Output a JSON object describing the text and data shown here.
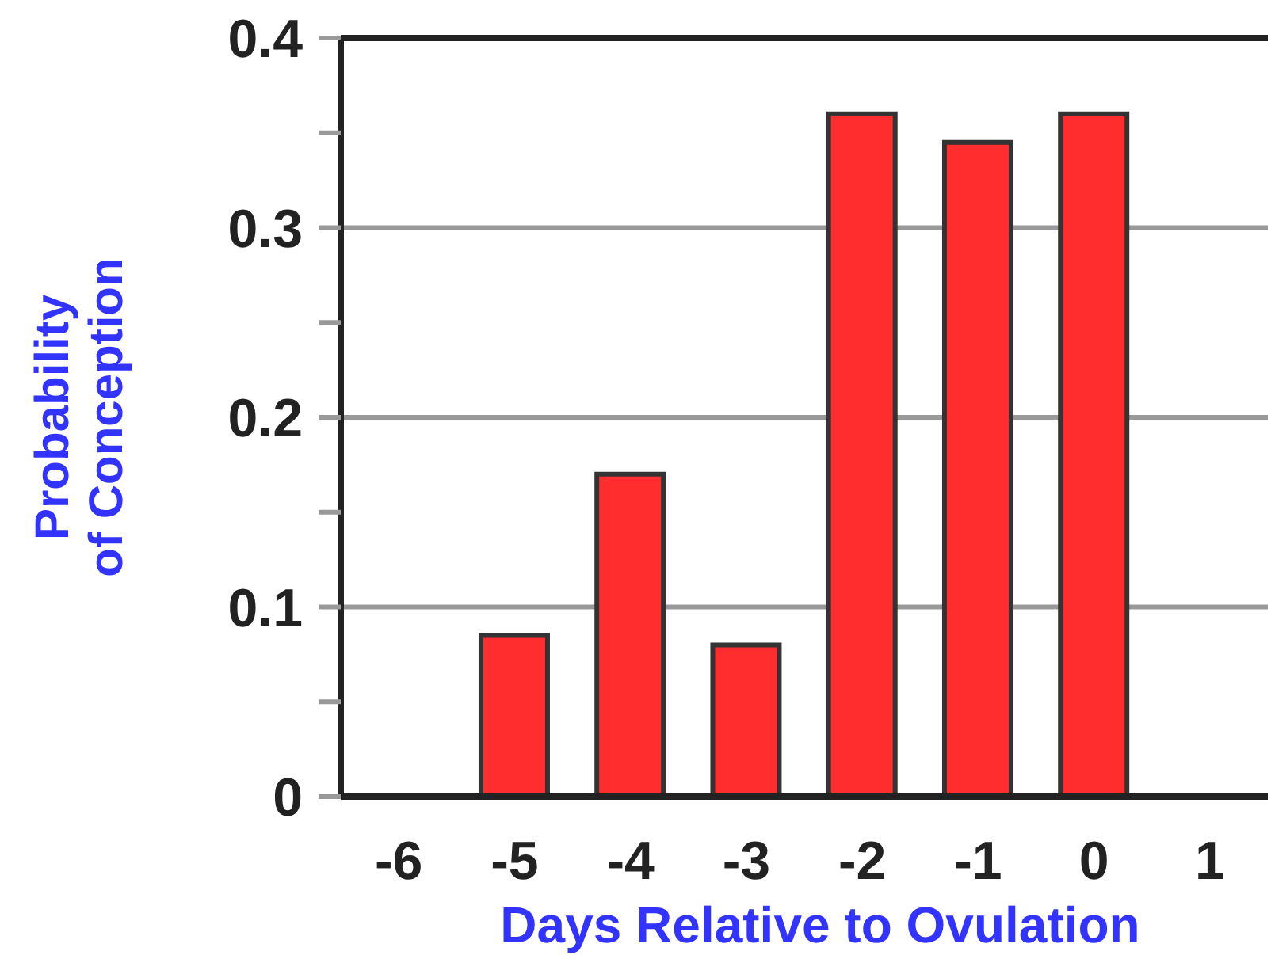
{
  "chart_data": {
    "type": "bar",
    "xlabel": "Days Relative to Ovulation",
    "ylabel": "Probability\nof Conception",
    "categories": [
      "-6",
      "-5",
      "-4",
      "-3",
      "-2",
      "-1",
      "0",
      "1"
    ],
    "values": [
      0,
      0.085,
      0.17,
      0.08,
      0.36,
      0.345,
      0.36,
      0
    ],
    "color": "#ff2d2d",
    "ylim": [
      0,
      0.4
    ],
    "yticks": [
      0,
      {
        "value": 0.05,
        "label": null
      },
      0.1,
      {
        "value": 0.15,
        "label": null
      },
      0.2,
      {
        "value": 0.25,
        "label": null
      },
      0.3,
      {
        "value": 0.35,
        "label": null
      },
      0.4
    ],
    "grid": "y"
  }
}
